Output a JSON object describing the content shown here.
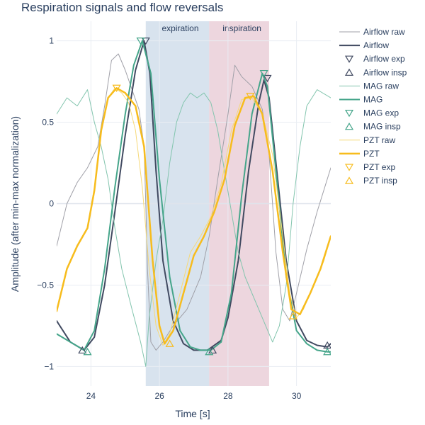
{
  "chart_data": {
    "type": "line",
    "title": "Respiration signals and flow reversals",
    "xlabel": "Time [s]",
    "ylabel": "Amplitude (after min-max normalization)",
    "xlim": [
      23.0,
      31.0
    ],
    "ylim": [
      -1.12,
      1.12
    ],
    "xticks": [
      24,
      26,
      28,
      30
    ],
    "yticks": [
      1,
      0.5,
      0,
      -0.5,
      -1
    ],
    "ytick_labels": [
      "1",
      "0.5",
      "0",
      "−0.5",
      "−1"
    ],
    "grid": true,
    "legend_position": "right",
    "regions": [
      {
        "label": "expiration",
        "x0": 25.6,
        "x1": 27.45,
        "color": "#a9c2da"
      },
      {
        "label": "inspiration",
        "x0": 27.45,
        "x1": 29.2,
        "color": "#d7a3b6"
      }
    ],
    "series": [
      {
        "name": "Airflow raw",
        "kind": "line",
        "color": "#a0a0a8",
        "width": 1,
        "x": [
          23.0,
          23.3,
          23.6,
          23.9,
          24.2,
          24.4,
          24.6,
          24.8,
          25.0,
          25.2,
          25.4,
          25.55,
          25.6,
          25.65,
          25.75,
          25.9,
          26.1,
          26.4,
          26.8,
          27.2,
          27.45,
          27.7,
          28.0,
          28.2,
          28.4,
          28.7,
          29.0,
          29.2,
          29.4,
          29.6,
          29.8,
          30.0,
          30.3,
          30.6,
          31.0
        ],
        "y": [
          -0.26,
          0.0,
          0.13,
          0.22,
          0.35,
          0.6,
          0.88,
          0.92,
          0.82,
          0.7,
          0.58,
          0.35,
          0.0,
          -0.4,
          -0.85,
          -0.9,
          -0.85,
          -0.75,
          -0.65,
          -0.45,
          -0.2,
          0.15,
          0.55,
          0.85,
          0.78,
          0.72,
          0.58,
          0.3,
          -0.3,
          -0.65,
          -0.72,
          -0.55,
          -0.28,
          -0.05,
          0.22
        ]
      },
      {
        "name": "Airflow",
        "kind": "line",
        "color": "#414a61",
        "width": 2,
        "x": [
          23.0,
          23.4,
          23.8,
          24.1,
          24.4,
          24.7,
          25.0,
          25.3,
          25.55,
          25.72,
          25.9,
          26.1,
          26.4,
          26.7,
          27.0,
          27.4,
          27.8,
          28.0,
          28.3,
          28.6,
          28.9,
          29.05,
          29.2,
          29.4,
          29.7,
          30.0,
          30.3,
          30.6,
          30.9,
          31.0
        ],
        "y": [
          -0.72,
          -0.85,
          -0.9,
          -0.82,
          -0.5,
          -0.05,
          0.42,
          0.82,
          1.0,
          0.8,
          0.2,
          -0.35,
          -0.72,
          -0.86,
          -0.9,
          -0.9,
          -0.84,
          -0.7,
          -0.35,
          0.2,
          0.62,
          0.76,
          0.65,
          0.25,
          -0.35,
          -0.72,
          -0.84,
          -0.87,
          -0.88,
          -0.86
        ]
      },
      {
        "name": "Airflow exp",
        "kind": "marker",
        "symbol": "triangle-down",
        "color": "#414a61",
        "x": [
          25.6,
          29.15
        ],
        "y": [
          1.0,
          0.77
        ]
      },
      {
        "name": "Airflow insp",
        "kind": "marker",
        "symbol": "triangle-up",
        "color": "#414a61",
        "x": [
          23.75,
          27.55,
          30.9
        ],
        "y": [
          -0.9,
          -0.9,
          -0.87
        ]
      },
      {
        "name": "MAG raw",
        "kind": "line",
        "color": "#83c5ae",
        "width": 1,
        "x": [
          23.0,
          23.3,
          23.6,
          23.9,
          24.1,
          24.3,
          24.5,
          24.7,
          24.9,
          25.2,
          25.45,
          25.6,
          25.7,
          25.9,
          26.1,
          26.3,
          26.5,
          26.7,
          26.9,
          27.1,
          27.3,
          27.5,
          27.7,
          27.9,
          28.1,
          28.3,
          28.5,
          28.7,
          28.9,
          29.1,
          29.3,
          29.5,
          29.7,
          29.9,
          30.1,
          30.3,
          30.6,
          31.0
        ],
        "y": [
          0.55,
          0.65,
          0.6,
          0.7,
          0.5,
          0.35,
          0.15,
          -0.15,
          -0.4,
          -0.65,
          -0.85,
          -1.0,
          -0.7,
          -0.35,
          -0.1,
          0.25,
          0.5,
          0.62,
          0.68,
          0.65,
          0.68,
          0.62,
          0.45,
          0.2,
          -0.05,
          -0.3,
          -0.45,
          -0.55,
          -0.65,
          -0.75,
          -0.85,
          -0.75,
          -0.5,
          0.0,
          0.35,
          0.6,
          0.7,
          0.65
        ]
      },
      {
        "name": "MAG",
        "kind": "line",
        "color": "#45a58a",
        "width": 2,
        "x": [
          23.0,
          23.4,
          23.8,
          24.1,
          24.4,
          24.7,
          25.0,
          25.25,
          25.5,
          25.75,
          26.0,
          26.3,
          26.6,
          26.9,
          27.2,
          27.5,
          27.8,
          28.1,
          28.4,
          28.7,
          29.0,
          29.15,
          29.4,
          29.7,
          30.0,
          30.3,
          30.6,
          30.9,
          31.0
        ],
        "y": [
          -0.8,
          -0.85,
          -0.9,
          -0.78,
          -0.4,
          0.1,
          0.55,
          0.85,
          1.0,
          0.8,
          0.15,
          -0.45,
          -0.78,
          -0.88,
          -0.9,
          -0.9,
          -0.85,
          -0.55,
          0.05,
          0.55,
          0.8,
          0.72,
          0.2,
          -0.45,
          -0.78,
          -0.86,
          -0.9,
          -0.91,
          -0.91
        ]
      },
      {
        "name": "MAG exp",
        "kind": "marker",
        "symbol": "triangle-down",
        "color": "#45a58a",
        "x": [
          25.45,
          29.05
        ],
        "y": [
          1.0,
          0.8
        ]
      },
      {
        "name": "MAG insp",
        "kind": "marker",
        "symbol": "triangle-up",
        "color": "#45a58a",
        "x": [
          23.9,
          27.45,
          30.9
        ],
        "y": [
          -0.91,
          -0.91,
          -0.91
        ]
      },
      {
        "name": "PZT raw",
        "kind": "line",
        "color": "#f6d979",
        "width": 1,
        "x": [
          23.0,
          23.3,
          23.6,
          23.9,
          24.1,
          24.3,
          24.5,
          24.7,
          24.9,
          25.1,
          25.3,
          25.5,
          25.7,
          25.9,
          26.1,
          26.3,
          26.6,
          26.9,
          27.2,
          27.5,
          27.8,
          28.1,
          28.4,
          28.7,
          29.0,
          29.3,
          29.6,
          29.8,
          30.0,
          30.2,
          30.5,
          30.8,
          31.0
        ],
        "y": [
          -0.66,
          -0.4,
          -0.26,
          -0.15,
          0.1,
          0.45,
          0.65,
          0.71,
          0.68,
          0.62,
          0.45,
          0.1,
          -0.4,
          -0.75,
          -0.87,
          -0.8,
          -0.55,
          -0.3,
          -0.2,
          -0.08,
          0.12,
          0.45,
          0.64,
          0.65,
          0.55,
          0.3,
          -0.2,
          -0.55,
          -0.7,
          -0.65,
          -0.5,
          -0.35,
          -0.2
        ]
      },
      {
        "name": "PZT",
        "kind": "line",
        "color": "#f7bc1d",
        "width": 2.5,
        "x": [
          23.0,
          23.3,
          23.6,
          23.9,
          24.1,
          24.3,
          24.5,
          24.75,
          25.0,
          25.3,
          25.55,
          25.8,
          26.0,
          26.15,
          26.4,
          26.7,
          27.0,
          27.3,
          27.6,
          27.9,
          28.2,
          28.5,
          28.75,
          29.0,
          29.3,
          29.6,
          29.85,
          30.1,
          30.4,
          30.7,
          31.0
        ],
        "y": [
          -0.66,
          -0.4,
          -0.26,
          -0.15,
          0.08,
          0.45,
          0.65,
          0.71,
          0.68,
          0.6,
          0.35,
          -0.35,
          -0.75,
          -0.86,
          -0.78,
          -0.55,
          -0.32,
          -0.2,
          -0.05,
          0.15,
          0.48,
          0.65,
          0.66,
          0.55,
          0.2,
          -0.3,
          -0.65,
          -0.68,
          -0.55,
          -0.4,
          -0.2
        ]
      },
      {
        "name": "PZT exp",
        "kind": "marker",
        "symbol": "triangle-down",
        "color": "#f7bc1d",
        "x": [
          24.75,
          28.65
        ],
        "y": [
          0.71,
          0.66
        ]
      },
      {
        "name": "PZT insp",
        "kind": "marker",
        "symbol": "triangle-up",
        "color": "#f7bc1d",
        "x": [
          26.3,
          29.9
        ],
        "y": [
          -0.86,
          -0.69
        ]
      }
    ]
  }
}
